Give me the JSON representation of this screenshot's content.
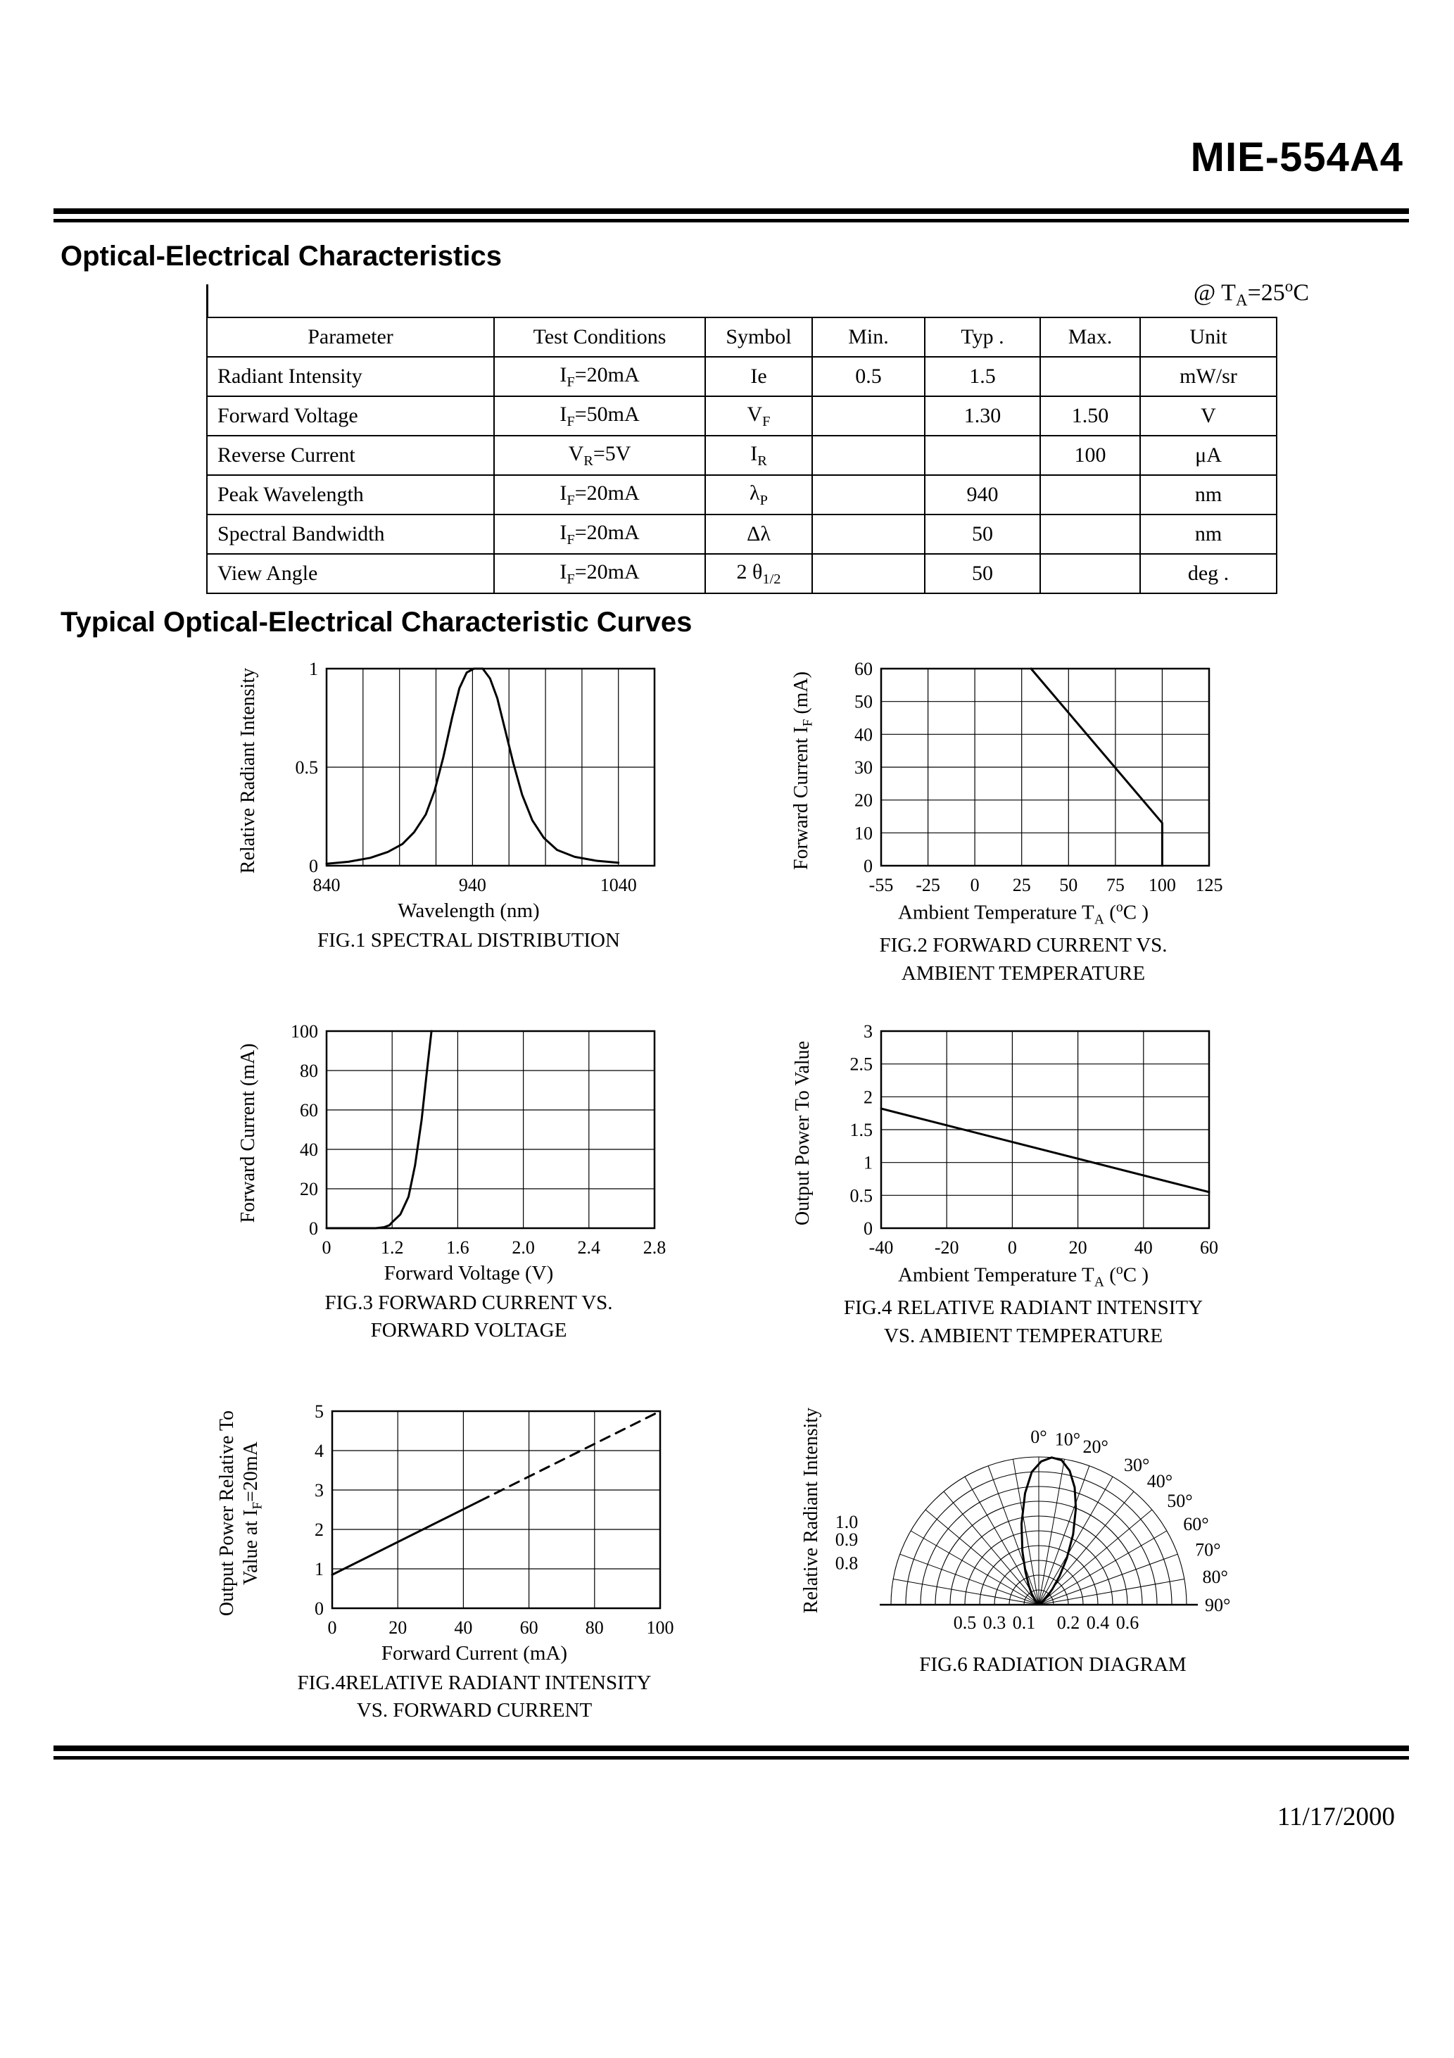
{
  "page": {
    "title": "MIE-554A4",
    "date": "11/17/2000"
  },
  "sections": {
    "characteristics_heading": "Optical-Electrical Characteristics",
    "condition_note": "@ T~A~=25^o^C",
    "curves_heading": "Typical  Optical-Electrical Characteristic Curves"
  },
  "table": {
    "headers": [
      "Parameter",
      "Test Conditions",
      "Symbol",
      "Min.",
      "Typ .",
      "Max.",
      "Unit"
    ],
    "rows": [
      [
        "Radiant Intensity",
        "I~F~=20mA",
        "Ie",
        "0.5",
        "1.5",
        "",
        "mW/sr"
      ],
      [
        "Forward Voltage",
        "I~F~=50mA",
        "V~F~",
        "",
        "1.30",
        "1.50",
        "V"
      ],
      [
        "Reverse Current",
        "V~R~=5V",
        "I~R~",
        "",
        "",
        "100",
        "μA"
      ],
      [
        "Peak Wavelength",
        "I~F~=20mA",
        "λ~P~",
        "",
        "940",
        "",
        "nm"
      ],
      [
        "Spectral Bandwidth",
        "I~F~=20mA",
        "Δλ",
        "",
        "50",
        "",
        "nm"
      ],
      [
        "View Angle",
        "I~F~=20mA",
        "2 θ~1/2~",
        "",
        "50",
        "",
        "deg ."
      ]
    ]
  },
  "chart_data": [
    {
      "type": "line",
      "caption": [
        "FIG.1 SPECTRAL DISTRIBUTION"
      ],
      "xlabel": "Wavelength (nm)",
      "ylabel": "Relative Radiant Intensity",
      "x_ticks": [
        840,
        940,
        1040
      ],
      "y_ticks": [
        0,
        0.5,
        1
      ],
      "y_tick_labels": [
        "0",
        "0.5",
        "1"
      ],
      "x_grid": [
        865,
        890,
        915,
        940,
        965,
        990,
        1015,
        1040
      ],
      "y_grid": [
        0.5
      ],
      "x_span": 0.89,
      "series": [
        {
          "dash": false,
          "points": [
            [
              840,
              0.01
            ],
            [
              855,
              0.02
            ],
            [
              870,
              0.04
            ],
            [
              882,
              0.07
            ],
            [
              892,
              0.11
            ],
            [
              900,
              0.17
            ],
            [
              908,
              0.26
            ],
            [
              914,
              0.38
            ],
            [
              920,
              0.55
            ],
            [
              926,
              0.75
            ],
            [
              931,
              0.9
            ],
            [
              936,
              0.98
            ],
            [
              941,
              1.0
            ],
            [
              947,
              1.0
            ],
            [
              952,
              0.95
            ],
            [
              957,
              0.85
            ],
            [
              962,
              0.7
            ],
            [
              968,
              0.52
            ],
            [
              974,
              0.36
            ],
            [
              981,
              0.23
            ],
            [
              989,
              0.14
            ],
            [
              998,
              0.08
            ],
            [
              1010,
              0.045
            ],
            [
              1025,
              0.025
            ],
            [
              1040,
              0.015
            ]
          ]
        }
      ]
    },
    {
      "type": "line",
      "caption": [
        "FIG.2 FORWARD CURRENT VS.",
        "AMBIENT TEMPERATURE"
      ],
      "xlabel": "Ambient Temperature T~A~ (^o^C )",
      "ylabel": "Forward Current I~F~ (mA)",
      "x_ticks": [
        -55,
        -25,
        0,
        25,
        50,
        75,
        100,
        125
      ],
      "y_ticks": [
        0,
        10,
        20,
        30,
        40,
        50,
        60
      ],
      "series": [
        {
          "dash": false,
          "points": [
            [
              30,
              60
            ],
            [
              100,
              13
            ],
            [
              100,
              0
            ]
          ]
        }
      ]
    },
    {
      "type": "line",
      "caption": [
        "FIG.3 FORWARD CURRENT VS.",
        "FORWARD VOLTAGE"
      ],
      "xlabel": "Forward Voltage (V)",
      "ylabel": "Forward Current (mA)",
      "x_ticks": [
        0,
        1.2,
        1.6,
        2.0,
        2.4,
        2.8
      ],
      "x_tick_labels": [
        "0",
        "1.2",
        "1.6",
        "2.0",
        "2.4",
        "2.8"
      ],
      "y_ticks": [
        0,
        20,
        40,
        60,
        80,
        100
      ],
      "series": [
        {
          "dash": false,
          "points": [
            [
              0,
              0
            ],
            [
              0.9,
              0
            ],
            [
              1.05,
              0.5
            ],
            [
              1.15,
              1.5
            ],
            [
              1.2,
              3
            ],
            [
              1.25,
              7
            ],
            [
              1.3,
              16
            ],
            [
              1.34,
              32
            ],
            [
              1.38,
              55
            ],
            [
              1.41,
              78
            ],
            [
              1.44,
              100
            ]
          ]
        }
      ]
    },
    {
      "type": "line",
      "caption": [
        "FIG.4 RELATIVE RADIANT INTENSITY",
        "VS. AMBIENT TEMPERATURE"
      ],
      "xlabel": "Ambient Temperature T~A~ (^o^C )",
      "ylabel": "Output Power To Value",
      "x_ticks": [
        -40,
        -20,
        0,
        20,
        40,
        60
      ],
      "y_ticks": [
        0,
        0.5,
        1,
        1.5,
        2,
        2.5,
        3
      ],
      "y_tick_labels": [
        "0",
        "0.5",
        "1",
        "1.5",
        "2",
        "2.5",
        "3"
      ],
      "series": [
        {
          "dash": false,
          "points": [
            [
              -40,
              1.82
            ],
            [
              60,
              0.55
            ]
          ]
        }
      ]
    },
    {
      "type": "line",
      "caption": [
        "FIG.4RELATIVE RADIANT INTENSITY",
        "VS. FORWARD CURRENT"
      ],
      "xlabel": "Forward Current (mA)",
      "ylabel": "Output Power Relative To\nValue at I~F~=20mA",
      "x_ticks": [
        0,
        20,
        40,
        60,
        80,
        100
      ],
      "y_ticks": [
        0,
        1,
        2,
        3,
        4,
        5
      ],
      "series": [
        {
          "dash": false,
          "points": [
            [
              0,
              0.85
            ],
            [
              45,
              2.72
            ]
          ]
        },
        {
          "dash": true,
          "points": [
            [
              45,
              2.72
            ],
            [
              100,
              5
            ]
          ]
        }
      ]
    },
    {
      "type": "polar",
      "caption": [
        "FIG.6 RADIATION DIAGRAM"
      ],
      "ylabel": "Relative Radiant Intensity",
      "rings": [
        0.1,
        0.2,
        0.3,
        0.4,
        0.5,
        0.6,
        0.7,
        0.8,
        0.9,
        1.0
      ],
      "spoke_step": 10,
      "top_angle_labels": [
        0,
        10,
        20
      ],
      "right_angle_labels": [
        30,
        40,
        50,
        60,
        70,
        80,
        90
      ],
      "radial_labels": [
        {
          "text": "1.0",
          "fx": -1.3,
          "fy": -0.52
        },
        {
          "text": "0.9",
          "fx": -1.3,
          "fy": -0.4
        },
        {
          "text": "0.8",
          "fx": -1.3,
          "fy": -0.24
        }
      ],
      "baseline_labels": [
        {
          "text": "0.5",
          "f": -0.5
        },
        {
          "text": "0.3",
          "f": -0.3
        },
        {
          "text": "0.1",
          "f": -0.1
        },
        {
          "text": "0.2",
          "f": 0.2
        },
        {
          "text": "0.4",
          "f": 0.4
        },
        {
          "text": "0.6",
          "f": 0.6
        }
      ],
      "pattern": [
        [
          -48,
          0.01
        ],
        [
          -40,
          0.04
        ],
        [
          -34,
          0.08
        ],
        [
          -28,
          0.14
        ],
        [
          -22,
          0.24
        ],
        [
          -17,
          0.38
        ],
        [
          -12,
          0.56
        ],
        [
          -7,
          0.76
        ],
        [
          -3,
          0.9
        ],
        [
          1,
          0.97
        ],
        [
          5,
          1.0
        ],
        [
          9,
          0.99
        ],
        [
          13,
          0.93
        ],
        [
          17,
          0.83
        ],
        [
          21,
          0.7
        ],
        [
          26,
          0.53
        ],
        [
          31,
          0.37
        ],
        [
          36,
          0.24
        ],
        [
          41,
          0.14
        ],
        [
          46,
          0.08
        ],
        [
          52,
          0.03
        ],
        [
          58,
          0.01
        ]
      ]
    }
  ]
}
